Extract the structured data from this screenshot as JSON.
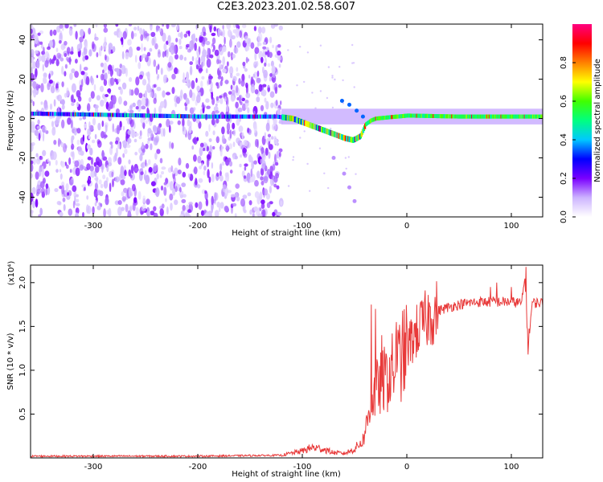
{
  "title": "C2E3.2023.201.02.58.G07",
  "chart_data": [
    {
      "type": "heatmap",
      "xlabel": "Height of straight line (km)",
      "ylabel": "Frequency (Hz)",
      "xlim": [
        -360,
        130
      ],
      "ylim": [
        -50,
        48
      ],
      "xticks": [
        -300,
        -200,
        -100,
        0,
        100
      ],
      "yticks": [
        -40,
        -20,
        0,
        20,
        40
      ],
      "colorbar": {
        "label": "Normalized spectral amplitude",
        "range": [
          0.0,
          1.0
        ],
        "ticks": [
          0.0,
          0.2,
          0.4,
          0.6,
          0.8
        ],
        "colormap": [
          "#ffffff",
          "#cdb4ff",
          "#7a00ff",
          "#0000ff",
          "#00c8ff",
          "#00ff80",
          "#40ff00",
          "#ffff00",
          "#ff8000",
          "#ff0000",
          "#ff0080"
        ]
      },
      "noise_region": {
        "x": [
          -360,
          -120
        ],
        "frequency": [
          -50,
          48
        ]
      },
      "ridge": {
        "x": [
          -360,
          -300,
          -250,
          -200,
          -150,
          -125,
          -110,
          -95,
          -80,
          -70,
          -60,
          -52,
          -45,
          -40,
          -35,
          -30,
          -20,
          -10,
          0,
          50,
          100,
          130
        ],
        "frequency": [
          2.5,
          2.0,
          1.5,
          1.0,
          1.0,
          1.0,
          0,
          -3,
          -6,
          -8,
          -10,
          -11,
          -9,
          -3,
          -1,
          0,
          0.5,
          1.0,
          1.5,
          1.0,
          1.0,
          1.0
        ]
      },
      "secondary_branch": {
        "x": [
          -70,
          -60,
          -55,
          -50
        ],
        "frequency": [
          -20,
          -28,
          -35,
          -42
        ]
      },
      "upper_branch": {
        "x": [
          -62,
          -55,
          -48,
          -42
        ],
        "frequency": [
          9,
          7,
          4,
          1
        ]
      }
    },
    {
      "type": "line",
      "xlabel": "Height of straight line (km)",
      "ylabel": "SNR (10 * v/v)",
      "scale_note": "(x10⁴)",
      "xlim": [
        -360,
        130
      ],
      "ylim": [
        0,
        2.2
      ],
      "xticks": [
        -300,
        -200,
        -100,
        0,
        100
      ],
      "yticks": [
        0.5,
        1.0,
        1.5,
        2.0
      ],
      "color": "#e83a3a",
      "series": [
        {
          "x": [
            -360,
            -300,
            -200,
            -120,
            -100,
            -90,
            -80,
            -70,
            -60,
            -50,
            -42,
            -38,
            -35,
            -30,
            -25,
            -20,
            -10,
            0,
            10,
            20,
            30,
            40,
            50,
            60,
            70,
            80,
            90,
            100,
            110,
            113,
            116,
            120,
            130
          ],
          "y": [
            0.02,
            0.02,
            0.02,
            0.03,
            0.08,
            0.12,
            0.1,
            0.06,
            0.05,
            0.1,
            0.2,
            0.4,
            0.6,
            0.75,
            0.85,
            0.9,
            1.05,
            1.25,
            1.45,
            1.6,
            1.68,
            1.72,
            1.75,
            1.77,
            1.78,
            1.78,
            1.78,
            1.78,
            1.77,
            2.05,
            1.3,
            1.77,
            1.77
          ],
          "spikes": [
            {
              "x": -34,
              "y": 1.75
            },
            {
              "x": -30,
              "y": 1.7
            },
            {
              "x": -24,
              "y": 1.4
            },
            {
              "x": -10,
              "y": 1.55
            },
            {
              "x": 0,
              "y": 1.55
            },
            {
              "x": 80,
              "y": 1.95
            },
            {
              "x": 86,
              "y": 2.0
            },
            {
              "x": 100,
              "y": 1.95
            },
            {
              "x": 114,
              "y": 2.18
            },
            {
              "x": 116,
              "y": 1.18
            }
          ]
        }
      ]
    }
  ]
}
